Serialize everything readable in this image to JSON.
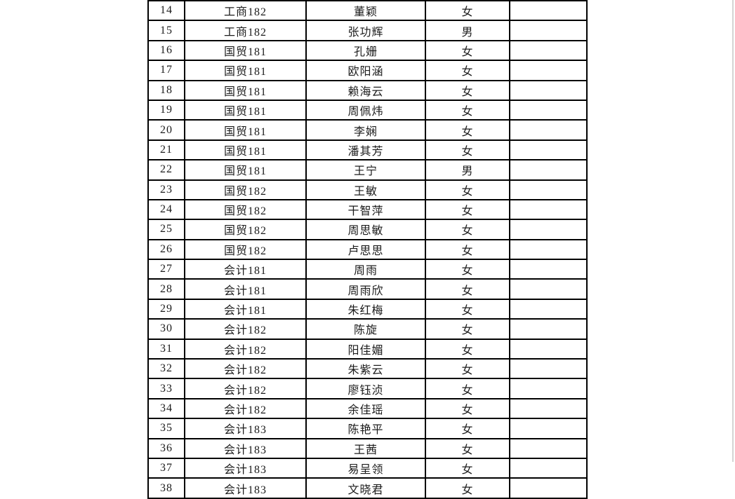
{
  "page": {
    "background_color": "#ffffff",
    "table_border_color": "#000000",
    "text_color": "#1c1c1c",
    "page_edge_color": "#d4d4d4"
  },
  "table": {
    "rows": [
      {
        "seq": "14",
        "class_name": "工商182",
        "name": "董颖",
        "gender": "女",
        "note": ""
      },
      {
        "seq": "15",
        "class_name": "工商182",
        "name": "张功辉",
        "gender": "男",
        "note": ""
      },
      {
        "seq": "16",
        "class_name": "国贸181",
        "name": "孔姗",
        "gender": "女",
        "note": ""
      },
      {
        "seq": "17",
        "class_name": "国贸181",
        "name": "欧阳涵",
        "gender": "女",
        "note": ""
      },
      {
        "seq": "18",
        "class_name": "国贸181",
        "name": "赖海云",
        "gender": "女",
        "note": ""
      },
      {
        "seq": "19",
        "class_name": "国贸181",
        "name": "周佩炜",
        "gender": "女",
        "note": ""
      },
      {
        "seq": "20",
        "class_name": "国贸181",
        "name": "李娴",
        "gender": "女",
        "note": ""
      },
      {
        "seq": "21",
        "class_name": "国贸181",
        "name": "潘其芳",
        "gender": "女",
        "note": ""
      },
      {
        "seq": "22",
        "class_name": "国贸181",
        "name": "王宁",
        "gender": "男",
        "note": ""
      },
      {
        "seq": "23",
        "class_name": "国贸182",
        "name": "王敏",
        "gender": "女",
        "note": ""
      },
      {
        "seq": "24",
        "class_name": "国贸182",
        "name": "干智萍",
        "gender": "女",
        "note": ""
      },
      {
        "seq": "25",
        "class_name": "国贸182",
        "name": "周思敏",
        "gender": "女",
        "note": ""
      },
      {
        "seq": "26",
        "class_name": "国贸182",
        "name": "卢思思",
        "gender": "女",
        "note": ""
      },
      {
        "seq": "27",
        "class_name": "会计181",
        "name": "周雨",
        "gender": "女",
        "note": ""
      },
      {
        "seq": "28",
        "class_name": "会计181",
        "name": "周雨欣",
        "gender": "女",
        "note": ""
      },
      {
        "seq": "29",
        "class_name": "会计181",
        "name": "朱红梅",
        "gender": "女",
        "note": ""
      },
      {
        "seq": "30",
        "class_name": "会计182",
        "name": "陈旋",
        "gender": "女",
        "note": ""
      },
      {
        "seq": "31",
        "class_name": "会计182",
        "name": "阳佳媚",
        "gender": "女",
        "note": ""
      },
      {
        "seq": "32",
        "class_name": "会计182",
        "name": "朱紫云",
        "gender": "女",
        "note": ""
      },
      {
        "seq": "33",
        "class_name": "会计182",
        "name": "廖钰浈",
        "gender": "女",
        "note": ""
      },
      {
        "seq": "34",
        "class_name": "会计182",
        "name": "余佳瑶",
        "gender": "女",
        "note": ""
      },
      {
        "seq": "35",
        "class_name": "会计183",
        "name": "陈艳平",
        "gender": "女",
        "note": ""
      },
      {
        "seq": "36",
        "class_name": "会计183",
        "name": "王茜",
        "gender": "女",
        "note": ""
      },
      {
        "seq": "37",
        "class_name": "会计183",
        "name": "易呈领",
        "gender": "女",
        "note": ""
      },
      {
        "seq": "38",
        "class_name": "会计183",
        "name": "文晓君",
        "gender": "女",
        "note": ""
      }
    ]
  }
}
